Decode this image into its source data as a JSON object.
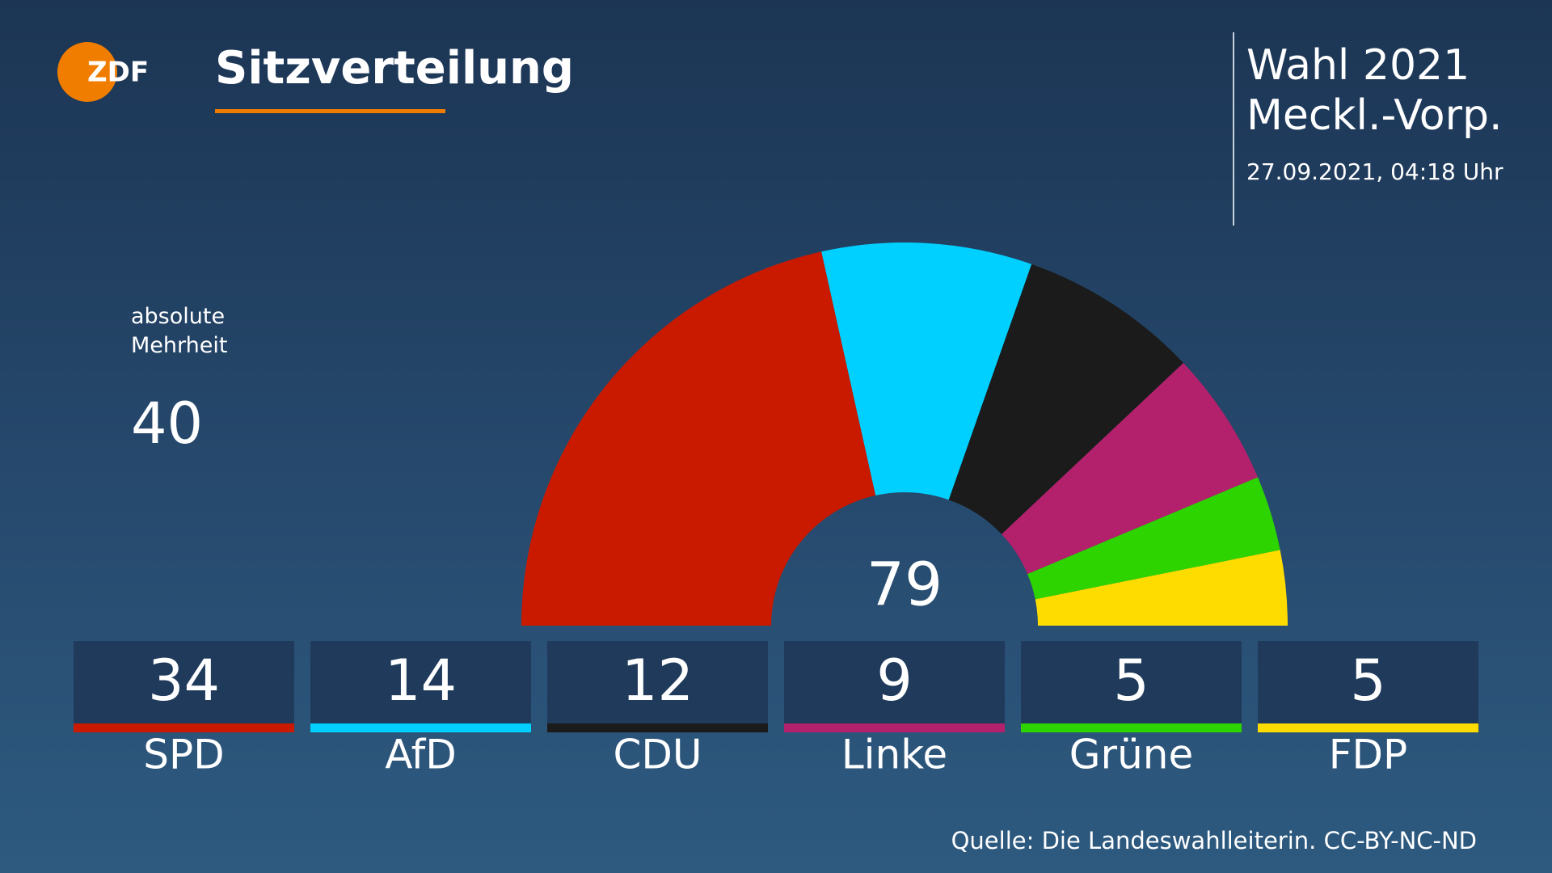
{
  "logo": "ZDF",
  "header": {
    "title": "Sitzverteilung",
    "election": "Wahl 2021",
    "region": "Meckl.-Vorp.",
    "timestamp": "27.09.2021, 04:18 Uhr"
  },
  "chart_data": {
    "type": "semicircle",
    "categories": [
      "SPD",
      "AfD",
      "CDU",
      "Linke",
      "Grüne",
      "FDP"
    ],
    "values": [
      34,
      14,
      12,
      9,
      5,
      5
    ],
    "colors": [
      "#c91a00",
      "#00d0ff",
      "#1b1b1b",
      "#b3206b",
      "#2dd400",
      "#ffdc00"
    ],
    "total": 79,
    "majority_label": "absolute Mehrheit",
    "majority_value": 40
  },
  "source": "Quelle: Die Landeswahlleiterin. CC-BY-NC-ND"
}
